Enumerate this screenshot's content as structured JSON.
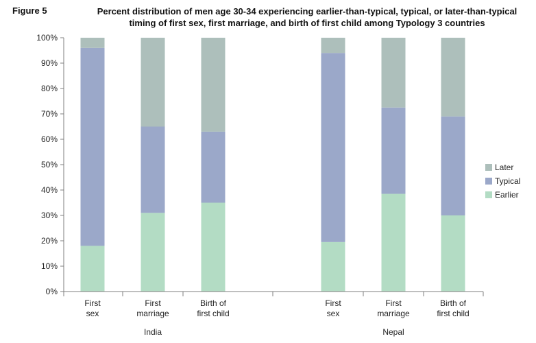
{
  "figure_label": "Figure 5",
  "title": "Percent distribution of men age 30-34 experiencing earlier-than-typical, typical, or later-than-typical timing of first sex, first marriage, and birth of first child among Typology 3 countries",
  "colors": {
    "Earlier": "#b3dcc4",
    "Typical": "#9ba8c9",
    "Later": "#adbfbb",
    "axis": "#7f7f7f"
  },
  "chart_data": {
    "type": "bar",
    "stacked": true,
    "title": "Percent distribution of men age 30-34 experiencing earlier-than-typical, typical, or later-than-typical timing of first sex, first marriage, and birth of first child among Typology 3 countries",
    "xlabel": "",
    "ylabel": "",
    "ylim": [
      0,
      100
    ],
    "y_ticks": [
      "0%",
      "10%",
      "20%",
      "30%",
      "40%",
      "50%",
      "60%",
      "70%",
      "80%",
      "90%",
      "100%"
    ],
    "grid": false,
    "legend_position": "right",
    "groups": [
      {
        "name": "India",
        "categories": [
          [
            "First",
            "sex"
          ],
          [
            "First",
            "marriage"
          ],
          [
            "Birth of",
            "first child"
          ]
        ],
        "series": [
          {
            "name": "Earlier",
            "values": [
              18,
              31,
              35
            ]
          },
          {
            "name": "Typical",
            "values": [
              78,
              34,
              28
            ]
          },
          {
            "name": "Later",
            "values": [
              4,
              35,
              37
            ]
          }
        ]
      },
      {
        "name": "Nepal",
        "categories": [
          [
            "First",
            "sex"
          ],
          [
            "First",
            "marriage"
          ],
          [
            "Birth of",
            "first child"
          ]
        ],
        "series": [
          {
            "name": "Earlier",
            "values": [
              19.5,
              38.5,
              30
            ]
          },
          {
            "name": "Typical",
            "values": [
              74.5,
              34,
              39
            ]
          },
          {
            "name": "Later",
            "values": [
              6,
              27.5,
              31
            ]
          }
        ]
      }
    ],
    "legend": [
      "Later",
      "Typical",
      "Earlier"
    ]
  }
}
